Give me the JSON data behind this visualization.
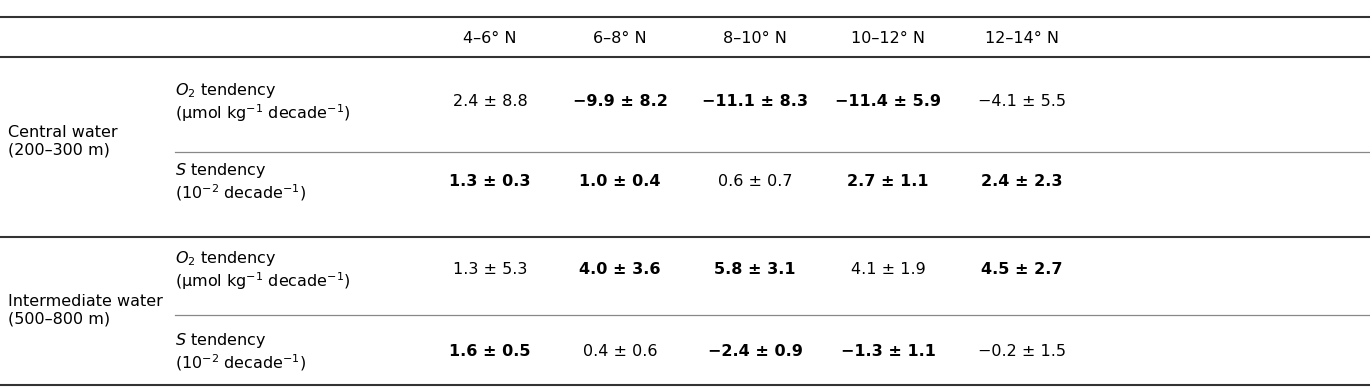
{
  "col_headers": [
    "4–6° N",
    "6–8° N",
    "8–10° N",
    "10–12° N",
    "12–14° N"
  ],
  "rows": [
    {
      "section": "Central water\n(200–300 m)",
      "label_line1": "$O_2$ tendency",
      "label_line2": "(μmol kg$^{-1}$ decade$^{-1}$)",
      "values": [
        "2.4 ± 8.8",
        "−9.9 ± 8.2",
        "−11.1 ± 8.3",
        "−11.4 ± 5.9",
        "−4.1 ± 5.5"
      ],
      "bold": [
        false,
        true,
        true,
        true,
        false
      ]
    },
    {
      "section": "",
      "label_line1": "$S$ tendency",
      "label_line2": "(10$^{-2}$ decade$^{-1}$)",
      "values": [
        "1.3 ± 0.3",
        "1.0 ± 0.4",
        "0.6 ± 0.7",
        "2.7 ± 1.1",
        "2.4 ± 2.3"
      ],
      "bold": [
        true,
        true,
        false,
        true,
        true
      ]
    },
    {
      "section": "Intermediate water\n(500–800 m)",
      "label_line1": "$O_2$ tendency",
      "label_line2": "(μmol kg$^{-1}$ decade$^{-1}$)",
      "values": [
        "1.3 ± 5.3",
        "4.0 ± 3.6",
        "5.8 ± 3.1",
        "4.1 ± 1.9",
        "4.5 ± 2.7"
      ],
      "bold": [
        false,
        true,
        true,
        false,
        true
      ]
    },
    {
      "section": "",
      "label_line1": "$S$ tendency",
      "label_line2": "(10$^{-2}$ decade$^{-1}$)",
      "values": [
        "1.6 ± 0.5",
        "0.4 ± 0.6",
        "−2.4 ± 0.9",
        "−1.3 ± 1.1",
        "−0.2 ± 1.5"
      ],
      "bold": [
        true,
        false,
        true,
        true,
        false
      ]
    }
  ],
  "font_size": 11.5,
  "bg_color": "white",
  "line_color": "#888888",
  "thick_line_color": "#333333"
}
